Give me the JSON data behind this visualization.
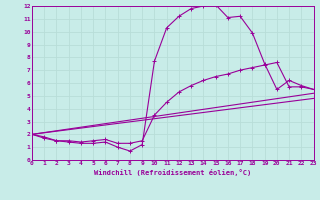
{
  "xlabel": "Windchill (Refroidissement éolien,°C)",
  "background_color": "#c8ece8",
  "line_color": "#990099",
  "grid_color": "#b8ddd8",
  "xmin": 0,
  "xmax": 23,
  "ymin": 0,
  "ymax": 12,
  "curve1_x": [
    0,
    1,
    2,
    3,
    4,
    5,
    6,
    7,
    8,
    9,
    10,
    11,
    12,
    13,
    14,
    15,
    16,
    17,
    18,
    19,
    20,
    21,
    22,
    23
  ],
  "curve1_y": [
    2.0,
    1.7,
    1.5,
    1.4,
    1.3,
    1.3,
    1.4,
    1.0,
    0.7,
    1.2,
    7.7,
    10.3,
    11.2,
    11.8,
    12.0,
    12.1,
    11.1,
    11.2,
    9.9,
    7.5,
    5.5,
    6.2,
    5.8,
    5.5
  ],
  "curve2_x": [
    0,
    1,
    2,
    3,
    4,
    5,
    6,
    7,
    8,
    9,
    10,
    11,
    12,
    13,
    14,
    15,
    16,
    17,
    18,
    19,
    20,
    21,
    22,
    23
  ],
  "curve2_y": [
    2.0,
    1.8,
    1.5,
    1.5,
    1.4,
    1.5,
    1.6,
    1.3,
    1.3,
    1.5,
    3.5,
    4.5,
    5.3,
    5.8,
    6.2,
    6.5,
    6.7,
    7.0,
    7.2,
    7.4,
    7.6,
    5.7,
    5.7,
    5.5
  ],
  "curve3_x": [
    0,
    23
  ],
  "curve3_y": [
    2.0,
    5.2
  ],
  "curve4_x": [
    0,
    23
  ],
  "curve4_y": [
    2.0,
    4.8
  ]
}
